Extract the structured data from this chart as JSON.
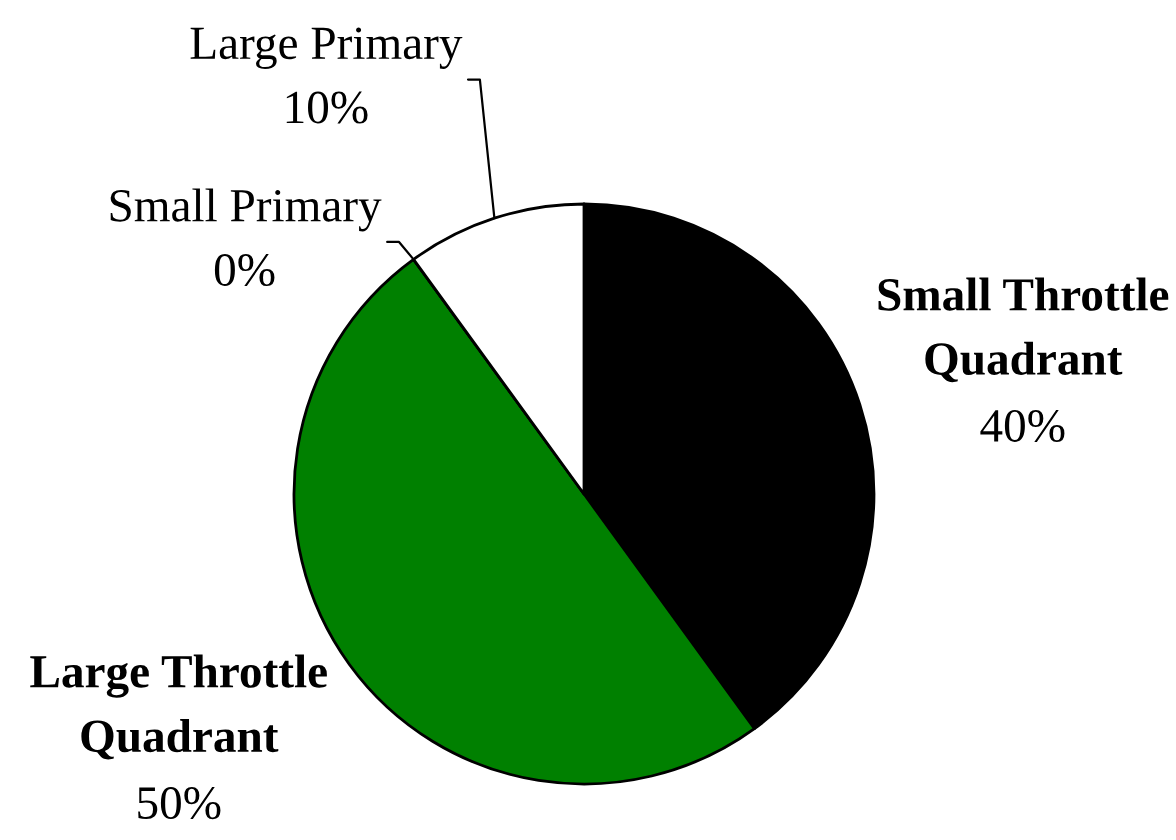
{
  "chart_data": {
    "type": "pie",
    "categories": [
      "Small Throttle Quadrant",
      "Large Throttle Quadrant",
      "Small Primary",
      "Large Primary"
    ],
    "values": [
      40,
      50,
      0,
      10
    ],
    "colors": [
      "#000000",
      "#008000",
      "#ffffff",
      "#ffffff"
    ],
    "value_labels": [
      "40%",
      "50%",
      "0%",
      "10%"
    ]
  }
}
